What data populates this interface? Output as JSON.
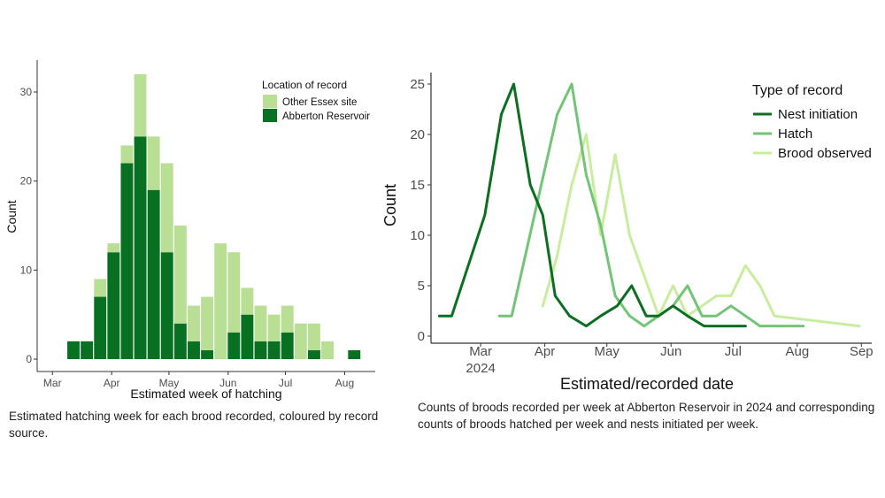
{
  "colors": {
    "abberton": "#087021",
    "other_essex": "#b9df94",
    "nest_initiation": "#0a6f20",
    "hatch": "#73c476",
    "brood_observed": "#c8ed9e",
    "axis": "#333333"
  },
  "chart_data": [
    {
      "type": "bar",
      "stacked": true,
      "xlabel": "Estimated week of hatching",
      "ylabel": "Count",
      "x_axis_type": "date",
      "x_tick_labels": [
        "Mar",
        "Apr",
        "May",
        "Jun",
        "Jul",
        "Aug"
      ],
      "x_ticks": [
        "2024-03-01",
        "2024-04-01",
        "2024-05-01",
        "2024-06-01",
        "2024-07-01",
        "2024-08-01"
      ],
      "xlim": [
        "2024-02-22",
        "2024-08-17"
      ],
      "ylim": [
        0,
        34
      ],
      "y_ticks": [
        0,
        10,
        20,
        30
      ],
      "legend": {
        "title": "Location of record",
        "placement": "top-right",
        "entries": [
          "Other Essex site",
          "Abberton Reservoir"
        ]
      },
      "categories": [
        "2024-03-12",
        "2024-03-19",
        "2024-03-26",
        "2024-04-02",
        "2024-04-09",
        "2024-04-16",
        "2024-04-23",
        "2024-04-30",
        "2024-05-07",
        "2024-05-14",
        "2024-05-21",
        "2024-05-28",
        "2024-06-04",
        "2024-06-11",
        "2024-06-18",
        "2024-06-25",
        "2024-07-02",
        "2024-07-09",
        "2024-07-16",
        "2024-07-23",
        "2024-08-06"
      ],
      "series": [
        {
          "name": "Abberton Reservoir",
          "color_key": "abberton",
          "values": [
            2,
            2,
            7,
            12,
            22,
            25,
            19,
            12,
            4,
            2,
            1,
            0,
            3,
            5,
            2,
            2,
            3,
            0,
            1,
            0,
            1
          ]
        },
        {
          "name": "Other Essex site",
          "color_key": "other_essex",
          "values": [
            0,
            0,
            2,
            1,
            2,
            7,
            6,
            10,
            11,
            4,
            6,
            13,
            9,
            3,
            4,
            3,
            3,
            4,
            3,
            2,
            0
          ]
        }
      ]
    },
    {
      "type": "line",
      "xlabel": "Estimated/recorded date",
      "ylabel": "Count",
      "x_axis_type": "date",
      "x_tick_labels": [
        "Mar\n2024",
        "Apr",
        "May",
        "Jun",
        "Jul",
        "Aug",
        "Sep"
      ],
      "x_ticks": [
        "2024-03-01",
        "2024-04-01",
        "2024-05-01",
        "2024-06-01",
        "2024-07-01",
        "2024-08-01",
        "2024-09-01"
      ],
      "xlim": [
        "2024-02-06",
        "2024-09-06"
      ],
      "ylim": [
        0,
        26
      ],
      "y_ticks": [
        0,
        5,
        10,
        15,
        20,
        25
      ],
      "legend": {
        "title": "Type of record",
        "placement": "top-right",
        "entries": [
          "Nest initiation",
          "Hatch",
          "Brood observed"
        ]
      },
      "series": [
        {
          "name": "Nest initiation",
          "color_key": "nest_initiation",
          "points": [
            [
              "2024-02-10",
              2
            ],
            [
              "2024-02-16",
              2
            ],
            [
              "2024-03-03",
              12
            ],
            [
              "2024-03-11",
              22
            ],
            [
              "2024-03-17",
              25
            ],
            [
              "2024-03-25",
              15
            ],
            [
              "2024-03-31",
              12
            ],
            [
              "2024-04-06",
              4
            ],
            [
              "2024-04-13",
              2
            ],
            [
              "2024-04-21",
              1
            ],
            [
              "2024-04-28",
              2
            ],
            [
              "2024-05-06",
              3
            ],
            [
              "2024-05-13",
              5
            ],
            [
              "2024-05-20",
              2
            ],
            [
              "2024-05-26",
              2
            ],
            [
              "2024-06-02",
              3
            ],
            [
              "2024-06-09",
              2
            ],
            [
              "2024-06-17",
              1
            ],
            [
              "2024-06-24",
              1
            ],
            [
              "2024-07-07",
              1
            ]
          ]
        },
        {
          "name": "Hatch",
          "color_key": "hatch",
          "points": [
            [
              "2024-03-10",
              2
            ],
            [
              "2024-03-16",
              2
            ],
            [
              "2024-04-07",
              22
            ],
            [
              "2024-04-14",
              25
            ],
            [
              "2024-04-21",
              16
            ],
            [
              "2024-04-28",
              11
            ],
            [
              "2024-05-05",
              4
            ],
            [
              "2024-05-12",
              2
            ],
            [
              "2024-05-19",
              1
            ],
            [
              "2024-05-26",
              2
            ],
            [
              "2024-06-02",
              3
            ],
            [
              "2024-06-09",
              5
            ],
            [
              "2024-06-16",
              2
            ],
            [
              "2024-06-23",
              2
            ],
            [
              "2024-06-30",
              3
            ],
            [
              "2024-07-07",
              2
            ],
            [
              "2024-07-14",
              1
            ],
            [
              "2024-07-21",
              1
            ],
            [
              "2024-08-04",
              1
            ]
          ]
        },
        {
          "name": "Brood observed",
          "color_key": "brood_observed",
          "points": [
            [
              "2024-03-31",
              3
            ],
            [
              "2024-04-07",
              8
            ],
            [
              "2024-04-14",
              15
            ],
            [
              "2024-04-21",
              20
            ],
            [
              "2024-04-28",
              10
            ],
            [
              "2024-05-05",
              18
            ],
            [
              "2024-05-12",
              10
            ],
            [
              "2024-05-19",
              6
            ],
            [
              "2024-05-26",
              2
            ],
            [
              "2024-06-02",
              5
            ],
            [
              "2024-06-09",
              2
            ],
            [
              "2024-06-16",
              3
            ],
            [
              "2024-06-23",
              4
            ],
            [
              "2024-06-30",
              4
            ],
            [
              "2024-07-07",
              7
            ],
            [
              "2024-07-14",
              5
            ],
            [
              "2024-07-21",
              2
            ],
            [
              "2024-08-31",
              1
            ]
          ]
        }
      ]
    }
  ],
  "captions": {
    "left": "Estimated hatching week for each brood recorded, coloured by record source.",
    "right": "Counts of broods recorded per week at Abberton Reservoir in 2024 and corresponding counts of broods hatched per week and nests initiated per week."
  }
}
